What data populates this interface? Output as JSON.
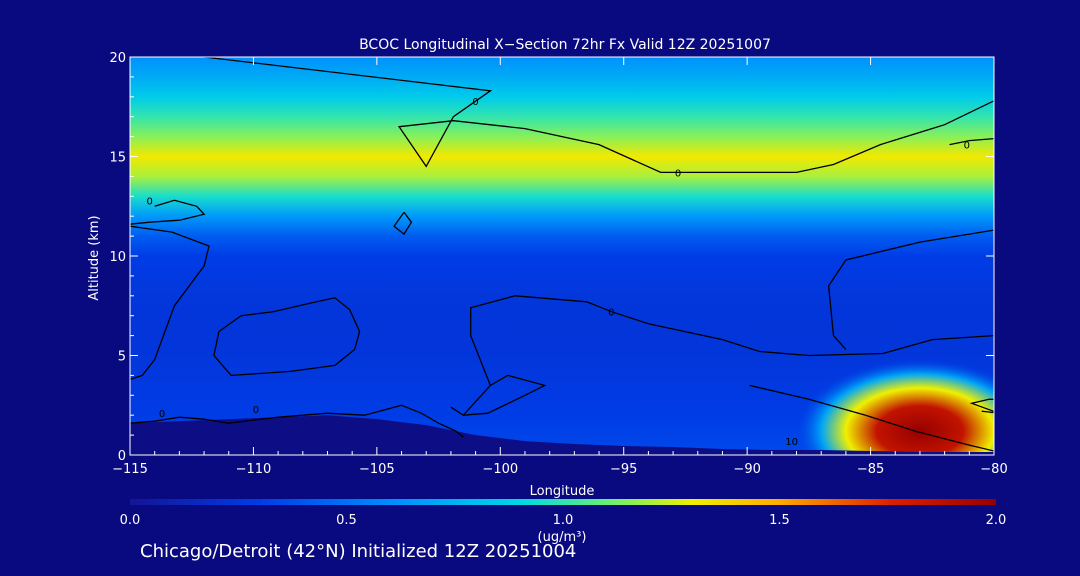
{
  "chart_data": {
    "type": "heatmap",
    "title": "BCOC Longitudinal X−Section 72hr  Fx Valid 12Z 20251007",
    "xlabel": "Longitude",
    "ylabel": "Altitude (km)",
    "xlim": [
      -115,
      -80
    ],
    "ylim": [
      0,
      20
    ],
    "x_ticks": [
      -115,
      -110,
      -105,
      -100,
      -95,
      -90,
      -85,
      -80
    ],
    "x_tick_labels": [
      "−115",
      "−110",
      "−105",
      "−100",
      "−95",
      "−90",
      "−85",
      "−80"
    ],
    "y_ticks": [
      0,
      5,
      10,
      15,
      20
    ],
    "y_tick_labels": [
      "0",
      "5",
      "10",
      "15",
      "20"
    ],
    "colorbar": {
      "label": "(ug/m³)",
      "ticks": [
        0.0,
        0.5,
        1.0,
        1.5,
        2.0
      ],
      "tick_labels": [
        "0.0",
        "0.5",
        "1.0",
        "1.5",
        "2.0"
      ],
      "range": [
        0.0,
        2.0
      ]
    },
    "field_profile": {
      "altitude_km": [
        0,
        2,
        4,
        6,
        8,
        10,
        11,
        12,
        13,
        14,
        15,
        16,
        17,
        18,
        19,
        20
      ],
      "concentration": [
        0.35,
        0.3,
        0.27,
        0.25,
        0.26,
        0.3,
        0.42,
        0.65,
        0.95,
        1.2,
        1.32,
        1.15,
        1.0,
        0.85,
        0.72,
        0.62
      ]
    },
    "plume": {
      "center_lon": -83,
      "center_alt_km": 1.2,
      "peak": 2.0
    },
    "contour_labels": [
      {
        "text": "0",
        "lon": -114.2,
        "alt": 12.8
      },
      {
        "text": "0",
        "lon": -101.0,
        "alt": 17.8
      },
      {
        "text": "0",
        "lon": -92.8,
        "alt": 14.2
      },
      {
        "text": "0",
        "lon": -81.1,
        "alt": 15.6
      },
      {
        "text": "0",
        "lon": -95.5,
        "alt": 7.2
      },
      {
        "text": "0",
        "lon": -113.7,
        "alt": 2.1
      },
      {
        "text": "0",
        "lon": -109.9,
        "alt": 2.3
      },
      {
        "text": "10",
        "lon": -88.2,
        "alt": 0.7
      }
    ],
    "contours": [
      [
        [
          -114.0,
          12.5
        ],
        [
          -113.2,
          12.8
        ],
        [
          -112.3,
          12.5
        ],
        [
          -112.0,
          12.1
        ],
        [
          -113.0,
          11.8
        ],
        [
          -114.2,
          11.7
        ],
        [
          -115.0,
          11.6
        ]
      ],
      [
        [
          -112.0,
          20.0
        ],
        [
          -100.4,
          18.3
        ],
        [
          -101.9,
          17.0
        ],
        [
          -103.0,
          14.5
        ],
        [
          -104.1,
          16.5
        ],
        [
          -101.9,
          16.8
        ],
        [
          -99.0,
          16.4
        ],
        [
          -96.0,
          15.6
        ],
        [
          -93.5,
          14.2
        ],
        [
          -88.0,
          14.2
        ],
        [
          -86.5,
          14.6
        ],
        [
          -84.6,
          15.6
        ],
        [
          -82.0,
          16.6
        ],
        [
          -80.0,
          17.8
        ]
      ],
      [
        [
          -81.8,
          15.6
        ],
        [
          -81.0,
          15.8
        ],
        [
          -80.0,
          15.9
        ]
      ],
      [
        [
          -103.9,
          12.2
        ],
        [
          -104.3,
          11.5
        ],
        [
          -103.9,
          11.1
        ],
        [
          -103.6,
          11.7
        ],
        [
          -103.9,
          12.2
        ]
      ],
      [
        [
          -115.0,
          11.5
        ],
        [
          -113.3,
          11.2
        ],
        [
          -111.8,
          10.5
        ],
        [
          -112.0,
          9.5
        ],
        [
          -113.2,
          7.5
        ],
        [
          -114.0,
          4.8
        ],
        [
          -114.5,
          4.0
        ],
        [
          -115.0,
          3.8
        ]
      ],
      [
        [
          -110.9,
          4.0
        ],
        [
          -108.5,
          4.2
        ],
        [
          -106.7,
          4.5
        ],
        [
          -105.9,
          5.3
        ],
        [
          -105.7,
          6.2
        ],
        [
          -106.1,
          7.3
        ],
        [
          -106.7,
          7.9
        ],
        [
          -107.8,
          7.6
        ],
        [
          -109.2,
          7.2
        ],
        [
          -110.5,
          7.0
        ],
        [
          -111.4,
          6.2
        ],
        [
          -111.6,
          5.0
        ],
        [
          -110.9,
          4.0
        ]
      ],
      [
        [
          -102.0,
          2.4
        ],
        [
          -101.5,
          2.0
        ],
        [
          -100.4,
          3.5
        ],
        [
          -101.2,
          6.0
        ],
        [
          -101.2,
          7.4
        ],
        [
          -99.4,
          8.0
        ],
        [
          -96.5,
          7.7
        ],
        [
          -95.5,
          7.2
        ],
        [
          -94.0,
          6.6
        ],
        [
          -91.0,
          5.8
        ],
        [
          -89.5,
          5.2
        ],
        [
          -87.5,
          5.0
        ],
        [
          -84.5,
          5.1
        ],
        [
          -82.5,
          5.8
        ],
        [
          -80.0,
          6.0
        ]
      ],
      [
        [
          -101.5,
          2.0
        ],
        [
          -100.5,
          2.1
        ],
        [
          -99.0,
          3.0
        ],
        [
          -98.2,
          3.5
        ],
        [
          -99.7,
          4.0
        ],
        [
          -100.4,
          3.5
        ]
      ],
      [
        [
          -89.9,
          3.5
        ],
        [
          -87.5,
          2.8
        ],
        [
          -85.2,
          2.0
        ],
        [
          -83.2,
          1.2
        ],
        [
          -81.0,
          0.5
        ],
        [
          -80.0,
          0.2
        ]
      ],
      [
        [
          -80.0,
          11.3
        ],
        [
          -83.0,
          10.7
        ],
        [
          -86.0,
          9.8
        ],
        [
          -86.7,
          8.5
        ],
        [
          -86.5,
          6.0
        ],
        [
          -86.0,
          5.3
        ]
      ],
      [
        [
          -115.0,
          1.6
        ],
        [
          -114.0,
          1.7
        ],
        [
          -113.0,
          1.9
        ],
        [
          -112.0,
          1.8
        ],
        [
          -111.0,
          1.6
        ],
        [
          -109.0,
          1.9
        ],
        [
          -107.0,
          2.1
        ],
        [
          -105.5,
          2.0
        ],
        [
          -104.0,
          2.5
        ],
        [
          -103.2,
          2.1
        ],
        [
          -102.5,
          1.6
        ],
        [
          -101.8,
          1.2
        ],
        [
          -101.5,
          0.9
        ]
      ],
      [
        [
          -80.5,
          2.2
        ],
        [
          -79.8,
          2.1
        ],
        [
          -80.9,
          2.6
        ],
        [
          -80.2,
          2.8
        ],
        [
          -80.0,
          2.8
        ]
      ]
    ],
    "terrain": [
      [
        -115,
        1.6
      ],
      [
        -113,
        1.7
      ],
      [
        -111,
        1.8
      ],
      [
        -109,
        1.9
      ],
      [
        -107,
        2.0
      ],
      [
        -105,
        1.8
      ],
      [
        -103,
        1.5
      ],
      [
        -101,
        1.0
      ],
      [
        -99,
        0.7
      ],
      [
        -97,
        0.55
      ],
      [
        -95,
        0.45
      ],
      [
        -93,
        0.4
      ],
      [
        -91,
        0.3
      ],
      [
        -89,
        0.25
      ],
      [
        -87,
        0.25
      ],
      [
        -85,
        0.2
      ],
      [
        -83,
        0.15
      ],
      [
        -81,
        0.15
      ],
      [
        -80,
        0.15
      ]
    ]
  },
  "footer": {
    "text": "Chicago/Detroit (42°N) Initialized 12Z 20251004"
  }
}
